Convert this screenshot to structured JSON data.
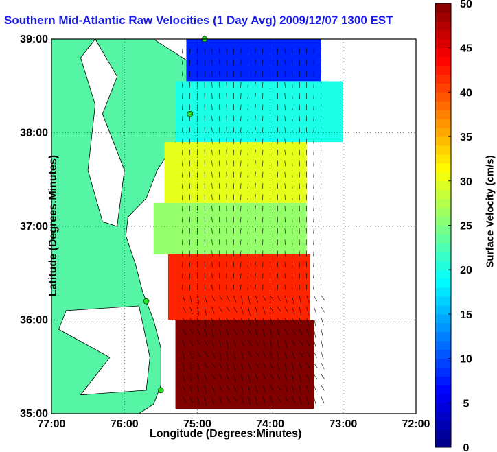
{
  "title": "Southern Mid-Atlantic Raw Velocities (1 Day Avg) 2009/12/07 1300 EST",
  "map": {
    "xlabel": "Longitude (Degrees:Minutes)",
    "ylabel": "Latitude (Degrees:Minutes)",
    "x_ticks": [
      "77:00",
      "76:00",
      "75:00",
      "74:00",
      "73:00",
      "72:00"
    ],
    "y_ticks": [
      "39:00",
      "38:00",
      "37:00",
      "36:00",
      "35:00"
    ],
    "lon_range": [
      -77,
      -72
    ],
    "lat_range": [
      35,
      39
    ],
    "grid": true,
    "land_color": "#55f5a5",
    "water_color": "#ffffff",
    "station_color": "#22dd22"
  },
  "colorbar": {
    "label": "Surface Velocity (cm/s)",
    "ticks": [
      "0",
      "5",
      "10",
      "15",
      "20",
      "25",
      "30",
      "35",
      "40",
      "45",
      "50"
    ],
    "range": [
      0,
      50
    ],
    "colormap": "jet"
  },
  "chart_data": {
    "type": "heatmap",
    "title": "Southern Mid-Atlantic Raw Velocities (1 Day Avg) 2009/12/07 1300 EST",
    "xlabel": "Longitude (Degrees:Minutes)",
    "ylabel": "Latitude (Degrees:Minutes)",
    "value_label": "Surface Velocity (cm/s)",
    "xlim": [
      -77,
      -72
    ],
    "ylim": [
      35,
      39
    ],
    "clim": [
      0,
      50
    ],
    "stations": [
      {
        "lon": -74.9,
        "lat": 39.0
      },
      {
        "lon": -75.1,
        "lat": 38.2
      },
      {
        "lon": -75.7,
        "lat": 36.2
      },
      {
        "lon": -75.5,
        "lat": 35.25
      }
    ],
    "regions": [
      {
        "lat": 38.8,
        "speed": 8
      },
      {
        "lat": 38.3,
        "speed": 20
      },
      {
        "lat": 37.5,
        "speed": 30
      },
      {
        "lat": 37.0,
        "speed": 26
      },
      {
        "lat": 36.4,
        "speed": 42
      },
      {
        "lat": 35.6,
        "speed": 50
      }
    ]
  }
}
